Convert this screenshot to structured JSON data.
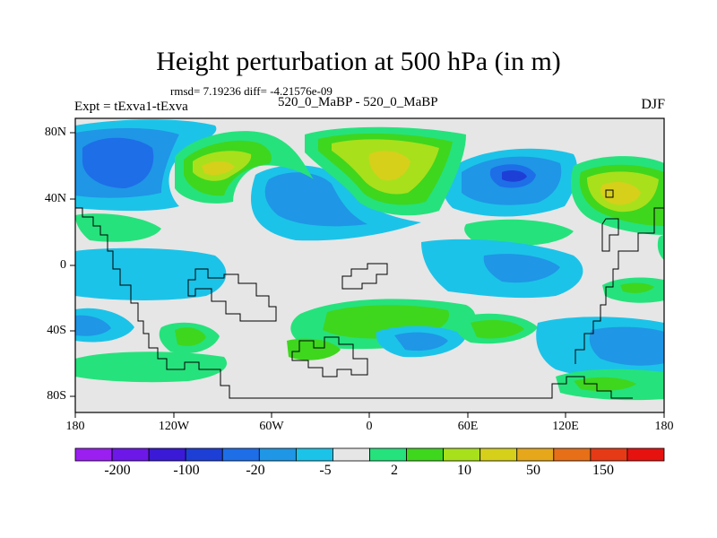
{
  "title": "Height perturbation at 500 hPa (in m)",
  "stats": "rmsd= 7.19236 diff= -4.21576e-09",
  "left_label": "Expt = tExva1-tExva",
  "center_label": "520_0_MaBP - 520_0_MaBP",
  "right_label": "DJF",
  "lat_labels": [
    "80N",
    "40N",
    "0",
    "40S",
    "80S"
  ],
  "lon_labels": [
    "180",
    "120W",
    "60W",
    "0",
    "60E",
    "120E",
    "180"
  ],
  "colorbar": {
    "labels": [
      "-200",
      "-100",
      "-20",
      "-5",
      "2",
      "10",
      "50",
      "150"
    ],
    "colors": [
      "#9a1ff0",
      "#6d18e8",
      "#3a1ad6",
      "#1e3fd6",
      "#1e6ee8",
      "#1f96e6",
      "#1cc3e8",
      "#e6e6e6",
      "#26e27c",
      "#3fd61e",
      "#a8e01c",
      "#d6d01a",
      "#e6a81a",
      "#e66f18",
      "#e63a16",
      "#e61210"
    ]
  },
  "field_colors": {
    "neutral": "#e6e6e6",
    "blue1": "#1cc3e8",
    "blue2": "#1f96e6",
    "blue3": "#1e6ee8",
    "blue4": "#1e3fd6",
    "green1": "#26e27c",
    "green2": "#3fd61e",
    "yellow1": "#a8e01c",
    "yellow2": "#d6d01a"
  }
}
